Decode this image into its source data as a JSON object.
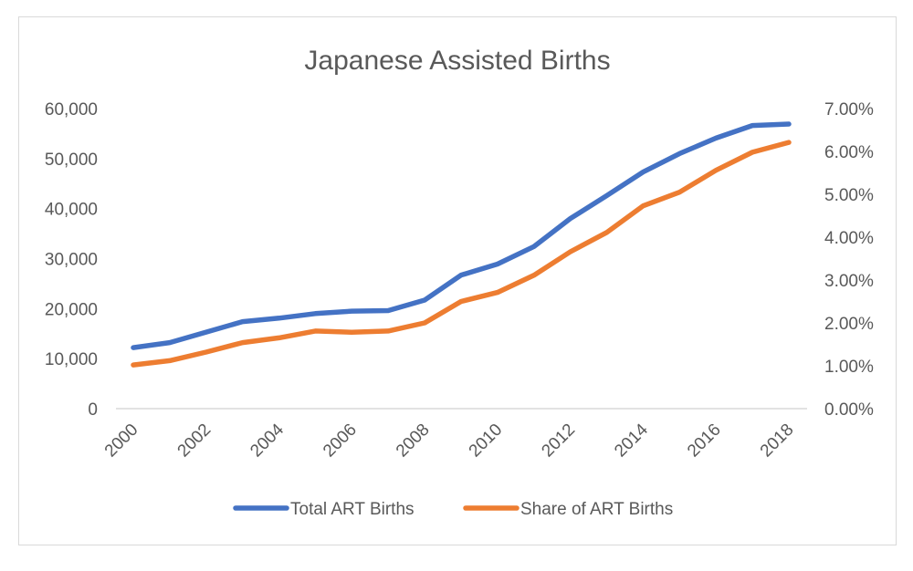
{
  "chart_data": {
    "type": "line",
    "title": "Japanese Assisted Births",
    "x": [
      "2000",
      "2001",
      "2002",
      "2003",
      "2004",
      "2005",
      "2006",
      "2007",
      "2008",
      "2009",
      "2010",
      "2011",
      "2012",
      "2013",
      "2014",
      "2015",
      "2016",
      "2017",
      "2018"
    ],
    "x_tick_labels": [
      "2000",
      "2002",
      "2004",
      "2006",
      "2008",
      "2010",
      "2012",
      "2014",
      "2016",
      "2018"
    ],
    "y_left": {
      "ylim": [
        0,
        60000
      ],
      "tick_labels": [
        "0",
        "10,000",
        "20,000",
        "30,000",
        "40,000",
        "50,000",
        "60,000"
      ]
    },
    "y_right": {
      "ylim": [
        0,
        0.07
      ],
      "tick_labels": [
        "0.00%",
        "1.00%",
        "2.00%",
        "3.00%",
        "4.00%",
        "5.00%",
        "6.00%",
        "7.00%"
      ]
    },
    "series": [
      {
        "name": "Total ART Births",
        "axis": "left",
        "color": "#4472c4",
        "values": [
          12200,
          13200,
          15300,
          17400,
          18100,
          19000,
          19500,
          19600,
          21700,
          26700,
          28900,
          32400,
          38000,
          42600,
          47300,
          51000,
          54100,
          56600,
          56900
        ]
      },
      {
        "name": "Share of ART Births",
        "axis": "right",
        "color": "#ed7d31",
        "values": [
          0.0102,
          0.0112,
          0.0132,
          0.0154,
          0.0165,
          0.0181,
          0.0178,
          0.0181,
          0.02,
          0.025,
          0.0271,
          0.0311,
          0.0366,
          0.0411,
          0.0473,
          0.0505,
          0.0556,
          0.0598,
          0.0621
        ]
      }
    ],
    "legend_position": "bottom",
    "grid": false
  }
}
